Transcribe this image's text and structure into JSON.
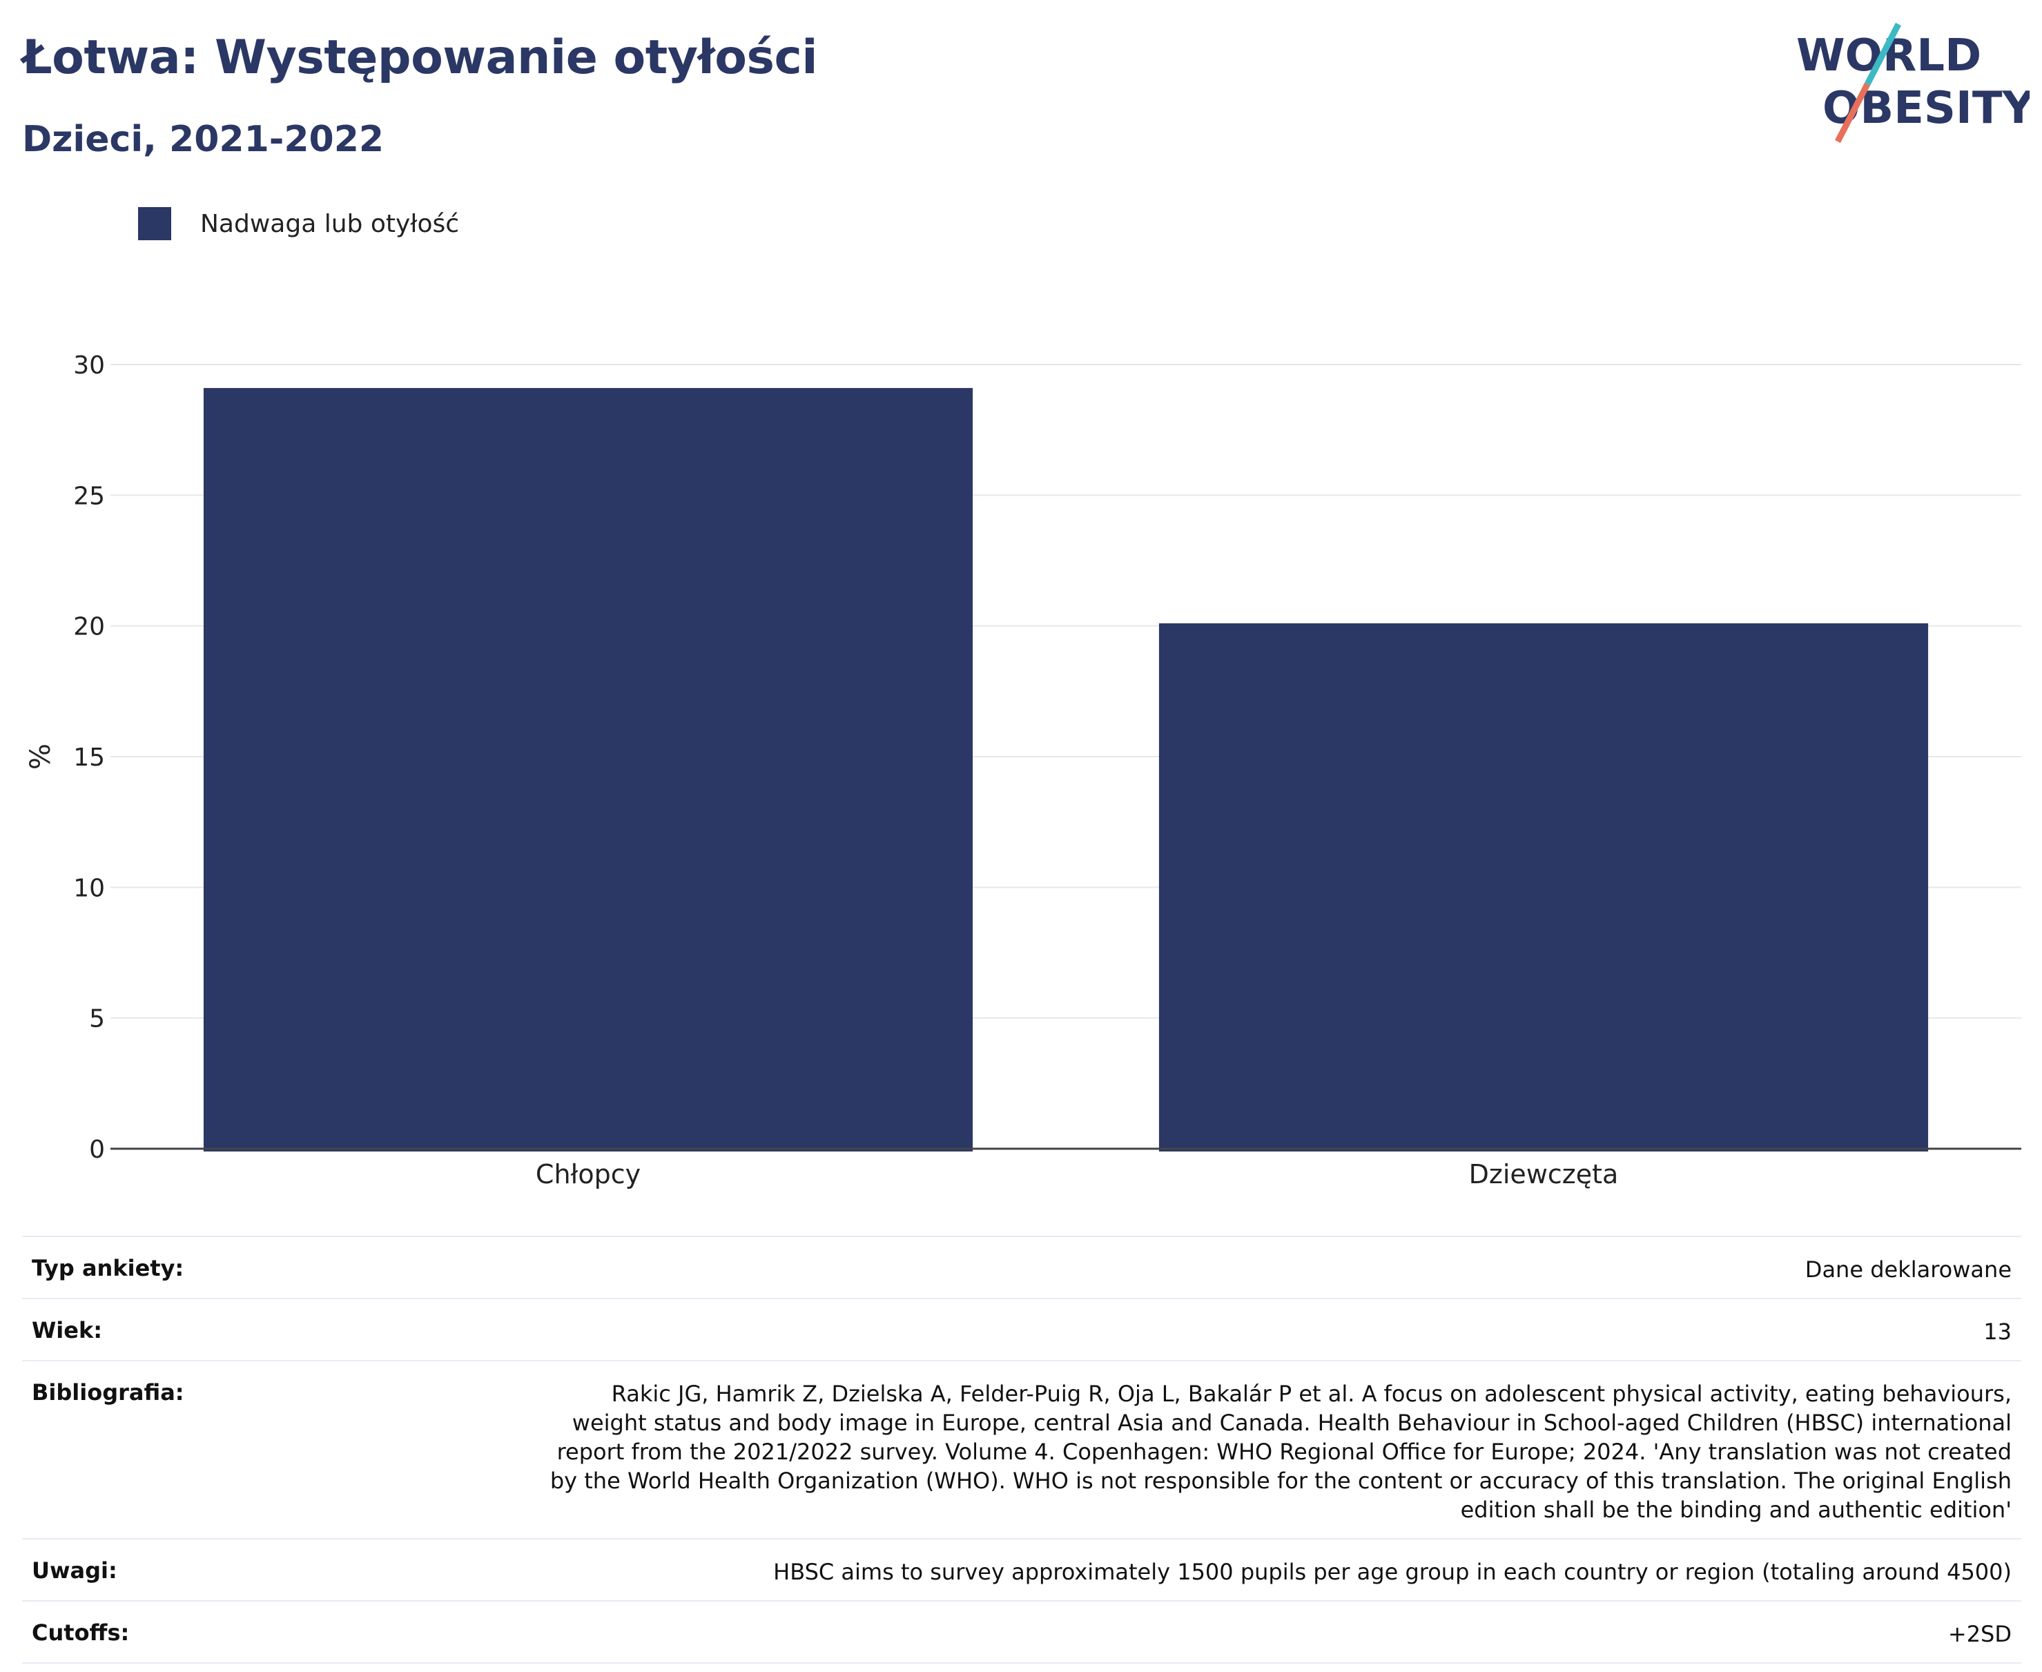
{
  "header": {
    "title": "Łotwa: Występowanie otyłości",
    "subtitle": "Dzieci, 2021-2022"
  },
  "logo": {
    "line1": "WORLD",
    "line2": "OBESITY"
  },
  "legend": {
    "label": "Nadwaga lub otyłość"
  },
  "chart_data": {
    "type": "bar",
    "categories": [
      "Chłopcy",
      "Dziewczęta"
    ],
    "series": [
      {
        "name": "Nadwaga lub otyłość",
        "values": [
          29.1,
          20.1
        ]
      }
    ],
    "ylabel": "%",
    "ylim": [
      0,
      30
    ],
    "yticks": [
      0,
      5,
      10,
      15,
      20,
      25,
      30
    ],
    "grid": true,
    "legend_position": "top-left",
    "colors": {
      "bar": "#2b3764",
      "grid": "#e6e6ee",
      "axis": "#444444"
    }
  },
  "meta": [
    {
      "key": "Typ ankiety:",
      "value": "Dane deklarowane"
    },
    {
      "key": "Wiek:",
      "value": "13"
    },
    {
      "key": "Bibliografia:",
      "value": "Rakic JG, Hamrik Z, Dzielska A, Felder-Puig R, Oja L, Bakalár P et al. A focus on adolescent physical activity, eating behaviours, weight status and body image in Europe, central Asia and Canada. Health Behaviour in School-aged Children (HBSC) international report from the 2021/2022 survey. Volume 4. Copenhagen: WHO Regional Office for Europe; 2024. 'Any translation was not created by the World Health Organization (WHO). WHO is not responsible for the content or accuracy of this translation. The original English edition shall be the binding and authentic edition'"
    },
    {
      "key": "Uwagi:",
      "value": "HBSC aims to survey approximately 1500 pupils per age group in each country or region (totaling around 4500)"
    },
    {
      "key": "Cutoffs:",
      "value": "+2SD"
    }
  ]
}
